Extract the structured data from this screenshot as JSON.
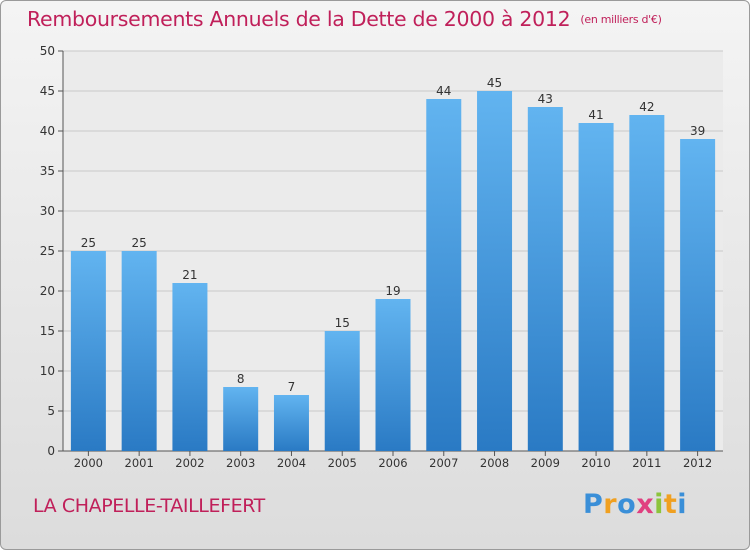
{
  "header": {
    "title": "Remboursements Annuels de la Dette de 2000 à 2012",
    "unit": "(en milliers d'€)"
  },
  "footer": {
    "town": "LA CHAPELLE-TAILLEFERT",
    "logo_letters": [
      {
        "ch": "P",
        "color": "#3a8fd8"
      },
      {
        "ch": "r",
        "color": "#f0a020"
      },
      {
        "ch": "o",
        "color": "#3a8fd8"
      },
      {
        "ch": "x",
        "color": "#e04080"
      },
      {
        "ch": "i",
        "color": "#8cc43c"
      },
      {
        "ch": "t",
        "color": "#f0a020"
      },
      {
        "ch": "i",
        "color": "#3a8fd8"
      }
    ]
  },
  "chart_data": {
    "type": "bar",
    "title": "Remboursements Annuels de la Dette de 2000 à 2012",
    "categories": [
      "2000",
      "2001",
      "2002",
      "2003",
      "2004",
      "2005",
      "2006",
      "2007",
      "2008",
      "2009",
      "2010",
      "2011",
      "2012"
    ],
    "values": [
      25,
      25,
      21,
      8,
      7,
      15,
      19,
      44,
      45,
      43,
      41,
      42,
      39
    ],
    "ylim": [
      0,
      50
    ],
    "yticks": [
      0,
      5,
      10,
      15,
      20,
      25,
      30,
      35,
      40,
      45,
      50
    ],
    "grid": true,
    "bar_color_top": "#62b4f0",
    "bar_color_bottom": "#2a7ac4"
  }
}
